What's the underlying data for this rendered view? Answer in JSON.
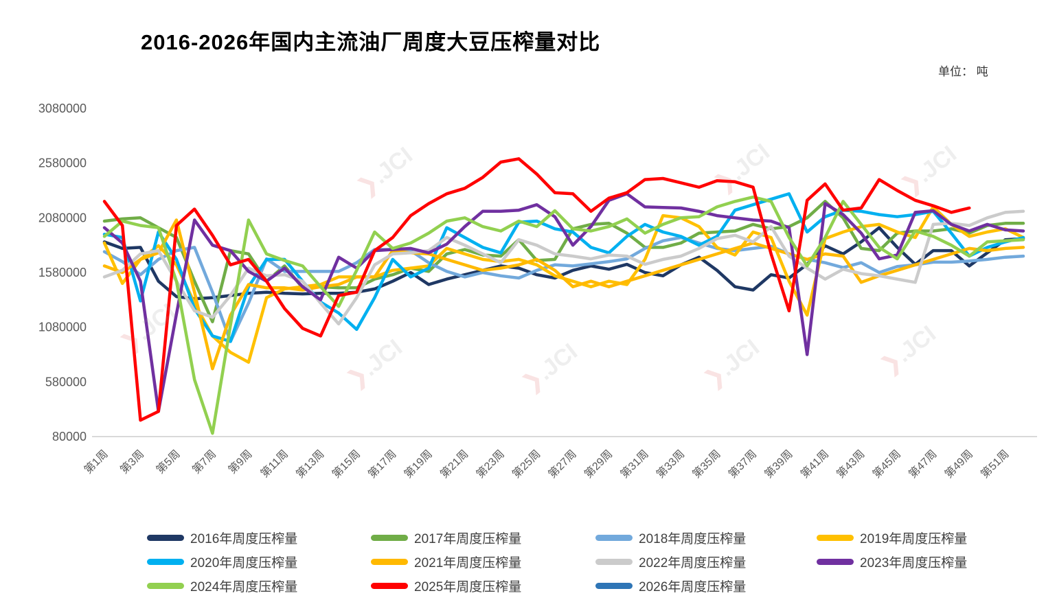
{
  "title": "2016-2026年国内主流油厂周度大豆压榨量对比",
  "unit_label": "单位： 吨",
  "watermark": {
    "mark": "❯",
    "text": ".JCI"
  },
  "chart_data": {
    "type": "line",
    "title": "2016-2026年国内主流油厂周度大豆压榨量对比",
    "unit": "吨",
    "x_axis": "周 (week of year, 1-52)",
    "x_tick_labels": [
      "第1周",
      "第3周",
      "第5周",
      "第7周",
      "第9周",
      "第11周",
      "第13周",
      "第15周",
      "第17周",
      "第19周",
      "第21周",
      "第23周",
      "第25周",
      "第27周",
      "第29周",
      "第31周",
      "第33周",
      "第35周",
      "第37周",
      "第39周",
      "第41周",
      "第43周",
      "第45周",
      "第47周",
      "第49周",
      "第51周"
    ],
    "weeks": 52,
    "ylim": [
      80000,
      3080000
    ],
    "y_ticks": [
      80000,
      580000,
      1080000,
      1580000,
      2080000,
      2580000,
      3080000
    ],
    "grid": false,
    "legend_position": "bottom",
    "series": [
      {
        "name": "2016",
        "label": "2016年周度压榨量",
        "color": "#1F3864",
        "values": [
          1860000,
          1800000,
          1810000,
          1500000,
          1360000,
          1340000,
          1350000,
          1370000,
          1390000,
          1400000,
          1390000,
          1385000,
          1390000,
          1390000,
          1400000,
          1430000,
          1500000,
          1580000,
          1470000,
          1520000,
          1560000,
          1600000,
          1640000,
          1620000,
          1560000,
          1530000,
          1600000,
          1640000,
          1610000,
          1655000,
          1580000,
          1550000,
          1650000,
          1720000,
          1600000,
          1450000,
          1420000,
          1560000,
          1530000,
          1655000,
          1825000,
          1750000,
          1860000,
          1990000,
          1810000,
          1655000,
          1780000,
          1780000,
          1640000,
          1760000,
          1880000,
          1890000
        ]
      },
      {
        "name": "2017",
        "label": "2017年周度压榨量",
        "color": "#70AD47",
        "values": [
          2050000,
          2070000,
          2080000,
          1990000,
          1900000,
          1500000,
          1130000,
          1780000,
          1750000,
          1500000,
          1640000,
          1440000,
          1450000,
          1440000,
          1440000,
          1520000,
          1560000,
          1620000,
          1590000,
          1750000,
          1790000,
          1740000,
          1730000,
          1880000,
          1690000,
          1700000,
          1980000,
          2020000,
          2030000,
          1940000,
          1810000,
          1810000,
          1850000,
          1940000,
          1950000,
          1960000,
          2020000,
          1980000,
          2000000,
          2080000,
          2230000,
          2080000,
          1800000,
          1780000,
          1940000,
          1960000,
          1960000,
          1980000,
          1940000,
          2010000,
          2030000,
          2030000
        ]
      },
      {
        "name": "2018",
        "label": "2018年周度压榨量",
        "color": "#72A9DC",
        "values": [
          1770000,
          1680000,
          1560000,
          1700000,
          1780000,
          1810000,
          1400000,
          950000,
          1300000,
          1705000,
          1590000,
          1590000,
          1590000,
          1590000,
          1670000,
          1790000,
          1790000,
          1780000,
          1670000,
          1590000,
          1540000,
          1580000,
          1550000,
          1530000,
          1600000,
          1650000,
          1640000,
          1660000,
          1680000,
          1705000,
          1800000,
          1870000,
          1900000,
          1850000,
          1800000,
          1780000,
          1800000,
          1820000,
          1750000,
          1700000,
          1670000,
          1625000,
          1670000,
          1580000,
          1635000,
          1650000,
          1675000,
          1675000,
          1685000,
          1700000,
          1720000,
          1730000
        ]
      },
      {
        "name": "2019",
        "label": "2019年周度压榨量",
        "color": "#FFC000",
        "values": [
          1850000,
          1480000,
          1700000,
          1825000,
          1650000,
          1300000,
          1000000,
          850000,
          760000,
          1350000,
          1430000,
          1450000,
          1470000,
          1540000,
          1540000,
          1540000,
          1600000,
          1620000,
          1640000,
          1800000,
          1750000,
          1700000,
          1680000,
          1700000,
          1650000,
          1550000,
          1500000,
          1450000,
          1500000,
          1470000,
          1700000,
          2100000,
          2080000,
          2000000,
          1810000,
          1740000,
          1950000,
          1900000,
          1500000,
          1190000,
          1890000,
          1950000,
          2000000,
          2020000,
          1950000,
          1900000,
          2180000,
          2020000,
          1910000,
          1950000,
          1980000,
          1900000
        ]
      },
      {
        "name": "2020",
        "label": "2020年周度压榨量",
        "color": "#00B0F0",
        "values": [
          1930000,
          1900000,
          1320000,
          1950000,
          1700000,
          1250000,
          1000000,
          950000,
          1450000,
          1700000,
          1700000,
          1500000,
          1310000,
          1210000,
          1060000,
          1350000,
          1700000,
          1540000,
          1620000,
          1990000,
          1900000,
          1810000,
          1760000,
          2040000,
          2050000,
          1980000,
          1950000,
          1810000,
          1760000,
          1910000,
          2020000,
          1950000,
          1910000,
          1830000,
          1910000,
          2150000,
          2200000,
          2250000,
          2300000,
          1950000,
          2090000,
          2150000,
          2140000,
          2110000,
          2090000,
          2110000,
          2140000,
          1940000,
          1730000,
          1810000,
          1860000,
          1900000
        ]
      },
      {
        "name": "2021",
        "label": "2021年周度压榨量",
        "color": "#FFB900",
        "values": [
          1640000,
          1580000,
          1700000,
          1760000,
          2060000,
          1400000,
          700000,
          1190000,
          1470000,
          1440000,
          1440000,
          1420000,
          1450000,
          1470000,
          1540000,
          1540000,
          1780000,
          1760000,
          1750000,
          1700000,
          1650000,
          1600000,
          1620000,
          1650000,
          1700000,
          1600000,
          1450000,
          1500000,
          1450000,
          1500000,
          1550000,
          1600000,
          1650000,
          1700000,
          1750000,
          1800000,
          1850000,
          1800000,
          1750000,
          1700000,
          1750000,
          1730000,
          1490000,
          1550000,
          1600000,
          1650000,
          1700000,
          1750000,
          1800000,
          1780000,
          1800000,
          1810000
        ]
      },
      {
        "name": "2022",
        "label": "2022年周度压榨量",
        "color": "#CBCBCB",
        "values": [
          1540000,
          1600000,
          1750000,
          1780000,
          1500000,
          1230000,
          1170000,
          1370000,
          1620000,
          1550000,
          1560000,
          1500000,
          1300000,
          1110000,
          1350000,
          1650000,
          1750000,
          1760000,
          1780000,
          1900000,
          1830000,
          1750000,
          1670000,
          1880000,
          1830000,
          1750000,
          1730000,
          1705000,
          1740000,
          1730000,
          1655000,
          1700000,
          1730000,
          1800000,
          1890000,
          1920000,
          1860000,
          2000000,
          1730000,
          1620000,
          1520000,
          1610000,
          1570000,
          1550000,
          1520000,
          1490000,
          2020000,
          2030000,
          2010000,
          2080000,
          2130000,
          2140000
        ]
      },
      {
        "name": "2023",
        "label": "2023年周度压榨量",
        "color": "#7030A0",
        "values": [
          1990000,
          1850000,
          1500000,
          310000,
          1200000,
          2060000,
          1830000,
          1780000,
          1590000,
          1500000,
          1620000,
          1450000,
          1330000,
          1720000,
          1620000,
          1780000,
          1790000,
          1800000,
          1760000,
          1840000,
          2000000,
          2140000,
          2140000,
          2150000,
          2200000,
          2090000,
          1830000,
          2000000,
          2240000,
          2300000,
          2180000,
          2175000,
          2170000,
          2140000,
          2100000,
          2080000,
          2060000,
          2050000,
          1990000,
          830000,
          2210000,
          2110000,
          1940000,
          1705000,
          1740000,
          2130000,
          2145000,
          2020000,
          1960000,
          2020000,
          1970000,
          1960000
        ]
      },
      {
        "name": "2024",
        "label": "2024年周度压榨量",
        "color": "#92D050",
        "values": [
          1910000,
          2050000,
          2010000,
          1990000,
          1500000,
          600000,
          110000,
          1100000,
          2060000,
          1750000,
          1690000,
          1640000,
          1450000,
          1270000,
          1600000,
          1950000,
          1800000,
          1850000,
          1940000,
          2050000,
          2080000,
          2000000,
          1960000,
          2050000,
          2000000,
          2145000,
          1980000,
          1960000,
          2000000,
          2070000,
          1940000,
          2020000,
          2080000,
          2090000,
          2180000,
          2230000,
          2270000,
          2230000,
          1900000,
          1640000,
          1900000,
          2230000,
          2020000,
          1810000,
          1705000,
          1960000,
          1910000,
          1830000,
          1730000,
          1860000,
          1870000,
          1880000
        ]
      },
      {
        "name": "2025",
        "label": "2025年周度压榨量",
        "color": "#FF0000",
        "values": [
          2230000,
          2010000,
          230000,
          310000,
          2010000,
          2160000,
          1920000,
          1650000,
          1700000,
          1500000,
          1250000,
          1070000,
          1000000,
          1370000,
          1400000,
          1780000,
          1900000,
          2100000,
          2210000,
          2300000,
          2350000,
          2450000,
          2590000,
          2620000,
          2480000,
          2310000,
          2300000,
          2140000,
          2260000,
          2310000,
          2430000,
          2440000,
          2400000,
          2360000,
          2420000,
          2410000,
          2360000,
          1750000,
          1230000,
          2240000,
          2390000,
          2150000,
          2170000,
          2430000,
          2330000,
          2240000,
          2190000,
          2130000,
          2170000
        ]
      },
      {
        "name": "2026",
        "label": "2026年周度压榨量",
        "color": "#2E75B6",
        "values": []
      }
    ]
  },
  "watermark_positions": "decorative JCI logo repeated over plot"
}
